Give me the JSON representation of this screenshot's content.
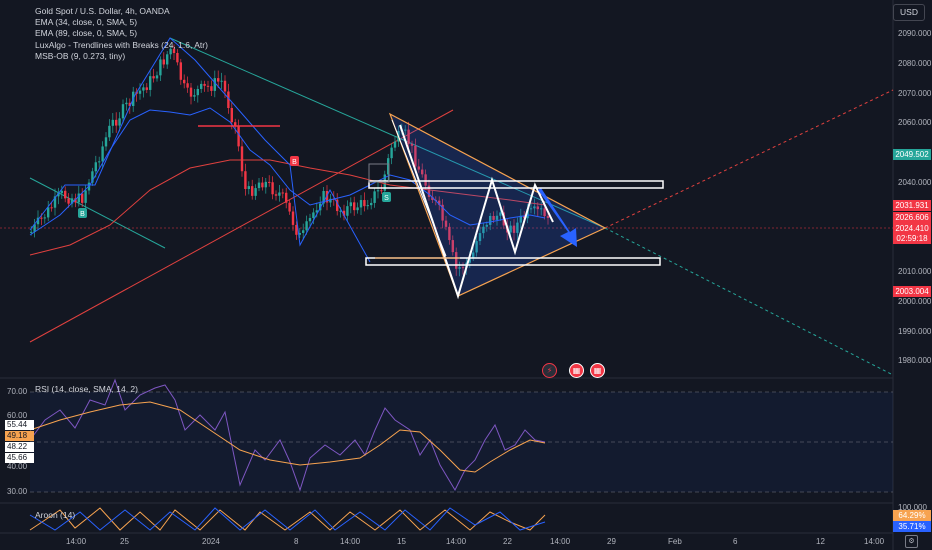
{
  "header": {
    "symbol_line": "Gold Spot / U.S. Dollar, 4h, OANDA",
    "indicators": [
      "EMA (34, close, 0, SMA, 5)",
      "EMA (89, close, 0, SMA, 5)",
      "LuxAlgo - Trendlines with Breaks (24, 1.6, Atr)",
      "MSB-OB (9, 0.273, tiny)"
    ]
  },
  "currency_button": "USD",
  "price_axis": {
    "ticks": [
      "2090.000",
      "2080.000",
      "2070.000",
      "2060.000",
      "2040.000",
      "2010.000",
      "2000.000",
      "1990.000",
      "1980.000"
    ],
    "tags": [
      {
        "label": "2049.502",
        "color": "#26a69a"
      },
      {
        "label": "2031.931",
        "color": "#f23645"
      },
      {
        "label": "2026.606",
        "color": "#f23645"
      },
      {
        "label": "2024.410",
        "color": "#f23645"
      },
      {
        "label": "02:59:18",
        "color": "#f23645"
      },
      {
        "label": "2003.004",
        "color": "#f23645"
      }
    ]
  },
  "rsi": {
    "title": "RSI (14, close, SMA, 14, 2)",
    "ticks": [
      "70.00",
      "60.00",
      "40.00",
      "30.00"
    ],
    "tags": [
      {
        "label": "55.44",
        "color": "#ffffff",
        "text": "#131722"
      },
      {
        "label": "49.18",
        "color": "#f7a350",
        "text": "#131722"
      },
      {
        "label": "48.22",
        "color": "#ffffff",
        "text": "#131722"
      },
      {
        "label": "45.66",
        "color": "#ffffff",
        "text": "#131722"
      }
    ]
  },
  "aroon": {
    "title": "Aroon (14)",
    "axis_label": "100.000",
    "tags": [
      {
        "label": "64.29%",
        "color": "#f7a350"
      },
      {
        "label": "35.71%",
        "color": "#2962ff"
      }
    ]
  },
  "time_axis": [
    "14:00",
    "25",
    "2024",
    "8",
    "14:00",
    "15",
    "14:00",
    "22",
    "14:00",
    "29",
    "Feb",
    "6",
    "12",
    "14:00"
  ],
  "icons": [
    "lightning-icon",
    "us-flag-icon",
    "us-flag-icon"
  ],
  "colors": {
    "background": "#131722",
    "bull": "#26a69a",
    "bear": "#f23645",
    "ema34": "#2962ff",
    "ema89": "#f23645",
    "pattern_fill": "#2962ff",
    "triangle": "#f7a350"
  }
}
